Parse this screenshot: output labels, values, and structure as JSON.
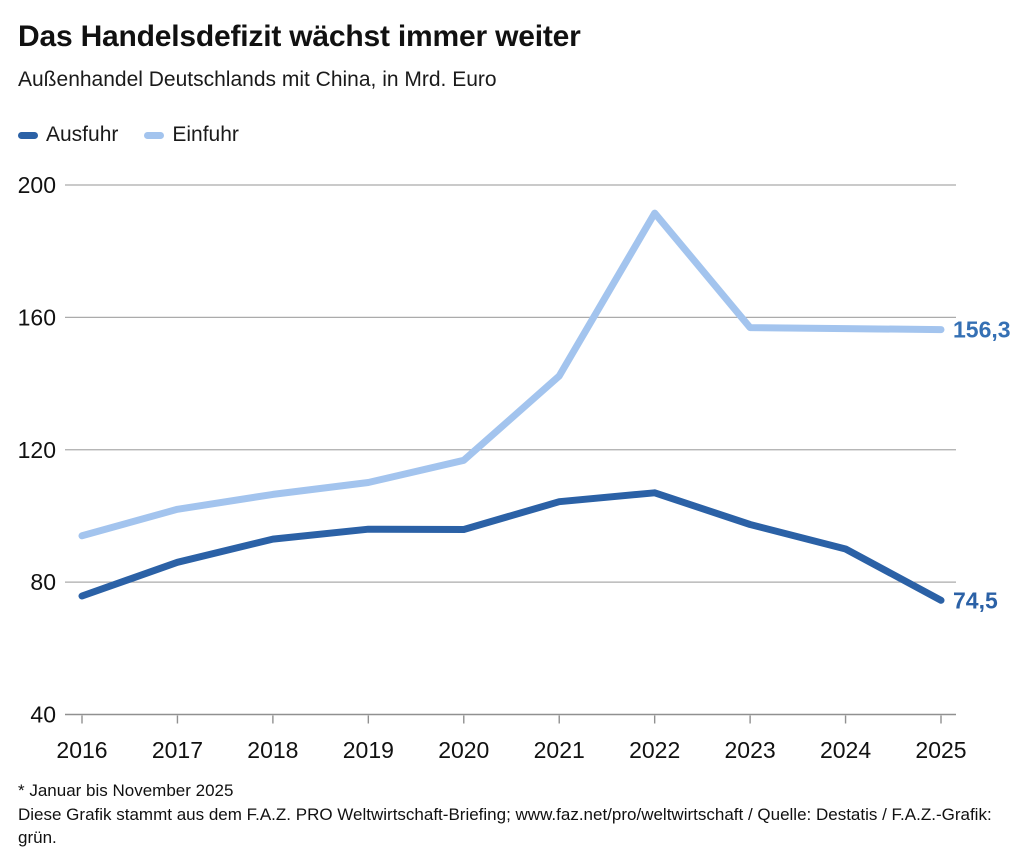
{
  "header": {
    "title": "Das Handelsdefizit wächst immer weiter",
    "subtitle": "Außenhandel Deutschlands mit China, in Mrd. Euro"
  },
  "legend": {
    "items": [
      {
        "label": "Ausfuhr",
        "color": "#2b61a6"
      },
      {
        "label": "Einfuhr",
        "color": "#a3c4ee"
      }
    ]
  },
  "chart_data": {
    "type": "line",
    "title": "Das Handelsdefizit wächst immer weiter",
    "subtitle": "Außenhandel Deutschlands mit China, in Mrd. Euro",
    "unit": "Mrd. Euro",
    "x": [
      2016,
      2017,
      2018,
      2019,
      2020,
      2021,
      2022,
      2023,
      2024,
      2025
    ],
    "series": [
      {
        "name": "Ausfuhr",
        "color": "#2b61a6",
        "values": [
          75.8,
          86.0,
          93.0,
          96.0,
          95.9,
          104.3,
          107.0,
          97.4,
          90.0,
          74.5
        ],
        "end_label": "74,5",
        "end_label_color": "#2b61a6"
      },
      {
        "name": "Einfuhr",
        "color": "#a3c4ee",
        "values": [
          94.0,
          102.0,
          106.5,
          110.1,
          116.8,
          142.3,
          191.5,
          156.9,
          156.6,
          156.3
        ],
        "end_label": "156,3",
        "end_label_color": "#3570b4"
      }
    ],
    "ylim": [
      40,
      200
    ],
    "yticks": [
      40,
      80,
      120,
      160,
      200
    ],
    "grid": true,
    "legend_position": "top-left",
    "colors": {
      "gridline": "#ababab",
      "axis": "#909090",
      "tick_label": "#111111"
    }
  },
  "footer": {
    "note": "* Januar bis November 2025",
    "source": "Diese Grafik stammt aus dem F.A.Z. PRO Weltwirtschaft-Briefing; www.faz.net/pro/weltwirtschaft / Quelle: Destatis / F.A.Z.-Grafik: grün."
  }
}
